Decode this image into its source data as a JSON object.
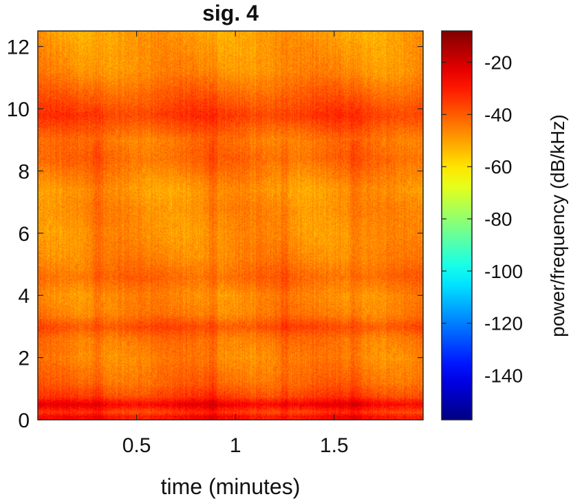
{
  "chart_data": {
    "type": "heatmap",
    "title": "sig. 4",
    "xlabel": "time (minutes)",
    "ylabel": "",
    "xlim": [
      0,
      1.95
    ],
    "ylim": [
      0,
      12.5
    ],
    "xticks": [
      0.5,
      1,
      1.5
    ],
    "xtick_labels": [
      "0.5",
      "1",
      "1.5"
    ],
    "yticks": [
      0,
      2,
      4,
      6,
      8,
      10,
      12
    ],
    "ytick_labels": [
      "0",
      "2",
      "4",
      "6",
      "8",
      "10",
      "12"
    ],
    "colorbar": {
      "label": "power/frequency (dB/kHz)",
      "range": [
        -157,
        -8
      ],
      "ticks": [
        -20,
        -40,
        -60,
        -80,
        -100,
        -120,
        -140
      ],
      "tick_labels": [
        "-20",
        "-40",
        "-60",
        "-80",
        "-100",
        "-120",
        "-140"
      ],
      "colormap": "jet"
    },
    "grid": false,
    "frequency_profile_dB": [
      {
        "f": 0.0,
        "db": -32
      },
      {
        "f": 0.1,
        "db": -27
      },
      {
        "f": 0.25,
        "db": -36
      },
      {
        "f": 0.5,
        "db": -25
      },
      {
        "f": 0.75,
        "db": -36
      },
      {
        "f": 1.2,
        "db": -42
      },
      {
        "f": 2.0,
        "db": -46
      },
      {
        "f": 2.6,
        "db": -44
      },
      {
        "f": 3.0,
        "db": -38
      },
      {
        "f": 3.4,
        "db": -45
      },
      {
        "f": 4.0,
        "db": -47
      },
      {
        "f": 4.6,
        "db": -42
      },
      {
        "f": 5.2,
        "db": -46
      },
      {
        "f": 6.0,
        "db": -48
      },
      {
        "f": 6.8,
        "db": -47
      },
      {
        "f": 7.4,
        "db": -49
      },
      {
        "f": 8.4,
        "db": -42
      },
      {
        "f": 9.0,
        "db": -44
      },
      {
        "f": 9.8,
        "db": -35
      },
      {
        "f": 10.5,
        "db": -41
      },
      {
        "f": 11.2,
        "db": -47
      },
      {
        "f": 12.5,
        "db": -50
      }
    ],
    "time_stripes_minutes": [
      0.3,
      0.88,
      1.25,
      1.6
    ]
  }
}
